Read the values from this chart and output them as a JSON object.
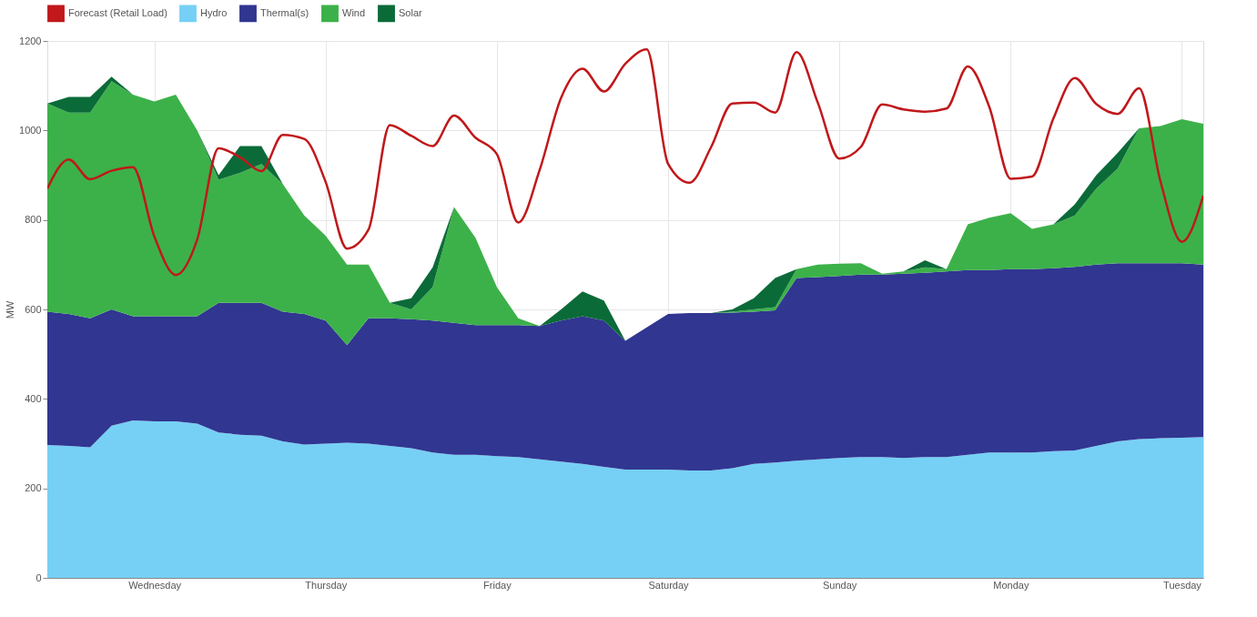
{
  "chart_data": {
    "type": "area",
    "stacked": true,
    "ylabel": "MW",
    "ylim": [
      0,
      1200
    ],
    "yticks": [
      0,
      200,
      400,
      600,
      800,
      1000,
      1200
    ],
    "grid": true,
    "legend": "top",
    "line_style": "solid",
    "marker": "none",
    "categories": [
      null,
      null,
      null,
      null,
      null,
      "Wednesday",
      null,
      null,
      null,
      null,
      null,
      null,
      null,
      "Thursday",
      null,
      null,
      null,
      null,
      null,
      null,
      null,
      "Friday",
      null,
      null,
      null,
      null,
      null,
      null,
      null,
      "Saturday",
      null,
      null,
      null,
      null,
      null,
      null,
      null,
      "Sunday",
      null,
      null,
      null,
      null,
      null,
      null,
      null,
      "Monday",
      null,
      null,
      null,
      null,
      null,
      null,
      null,
      "Tuesday",
      null
    ],
    "series": [
      {
        "name": "Forecast (Retail Load)",
        "type": "line",
        "color": "#c0181b",
        "values": [
          870,
          935,
          891,
          910,
          918,
          763,
          677,
          756,
          960,
          940,
          909,
          990,
          981,
          885,
          736,
          778,
          1012,
          988,
          965,
          1033,
          984,
          947,
          794,
          912,
          1073,
          1138,
          1087,
          1149,
          1181,
          925,
          883,
          962,
          1060,
          1062,
          1040,
          1175,
          1061,
          937,
          963,
          1058,
          1047,
          1042,
          1049,
          1143,
          1053,
          892,
          897,
          1027,
          1117,
          1059,
          1037,
          1094,
          886,
          751,
          854
        ]
      },
      {
        "name": "Hydro",
        "color": "#76d0f5",
        "values": [
          297,
          295,
          292,
          340,
          352,
          350,
          350,
          345,
          325,
          320,
          318,
          305,
          298,
          300,
          302,
          300,
          295,
          290,
          280,
          275,
          275,
          272,
          270,
          265,
          260,
          255,
          248,
          242,
          242,
          242,
          240,
          240,
          245,
          255,
          258,
          262,
          265,
          268,
          270,
          270,
          268,
          270,
          270,
          275,
          280,
          280,
          280,
          283,
          285,
          295,
          305,
          310,
          312,
          313,
          315
        ]
      },
      {
        "name": "Thermal(s)",
        "color": "#313691",
        "values": [
          298,
          295,
          288,
          260,
          233,
          235,
          235,
          240,
          290,
          295,
          297,
          290,
          292,
          275,
          218,
          280,
          285,
          288,
          295,
          295,
          290,
          293,
          295,
          298,
          315,
          330,
          327,
          288,
          318,
          348,
          352,
          352,
          348,
          340,
          340,
          408,
          407,
          407,
          408,
          408,
          412,
          412,
          415,
          413,
          408,
          410,
          410,
          409,
          410,
          405,
          398,
          393,
          391,
          390,
          385
        ]
      },
      {
        "name": "Wind",
        "color": "#3cb149",
        "values": [
          465,
          450,
          460,
          510,
          495,
          480,
          495,
          415,
          275,
          290,
          310,
          285,
          220,
          190,
          180,
          120,
          35,
          22,
          75,
          259,
          195,
          85,
          15,
          0,
          0,
          0,
          0,
          0,
          0,
          0,
          0,
          0,
          2,
          5,
          7,
          20,
          28,
          27,
          25,
          2,
          5,
          12,
          5,
          102,
          117,
          125,
          90,
          98,
          115,
          170,
          212,
          302,
          307,
          322,
          315
        ]
      },
      {
        "name": "Solar",
        "color": "#0b6b38",
        "values": [
          0,
          35,
          35,
          10,
          0,
          0,
          0,
          0,
          10,
          60,
          40,
          0,
          0,
          0,
          0,
          0,
          0,
          25,
          44,
          0,
          0,
          0,
          0,
          0,
          25,
          55,
          45,
          0,
          0,
          0,
          0,
          0,
          5,
          25,
          65,
          0,
          0,
          0,
          0,
          0,
          0,
          16,
          0,
          0,
          0,
          0,
          0,
          0,
          25,
          30,
          35,
          0,
          0,
          0,
          0
        ]
      }
    ]
  }
}
